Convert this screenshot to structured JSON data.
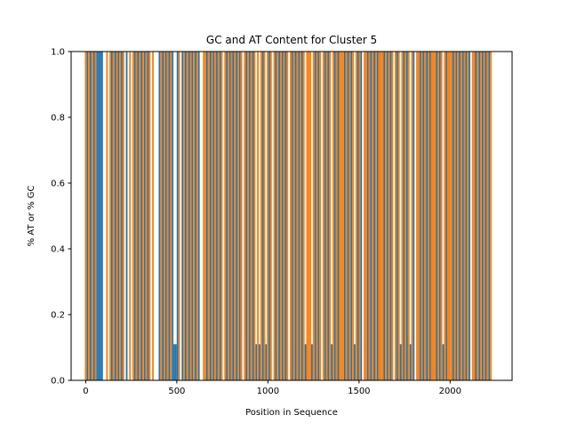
{
  "chart_data": {
    "type": "bar",
    "title": "GC and AT Content for Cluster 5",
    "xlabel": "Position in Sequence",
    "ylabel": "% AT or % GC",
    "xlim": [
      -80,
      2340
    ],
    "ylim": [
      0,
      1.0
    ],
    "xticks": [
      "0",
      "500",
      "1000",
      "1500",
      "2000"
    ],
    "yticks": [
      "0.0",
      "0.2",
      "0.4",
      "0.6",
      "0.8",
      "1.0"
    ],
    "grid": false,
    "legend": "none",
    "colors": {
      "at": "#1f77b4",
      "gc": "#ff7f0e"
    },
    "bar_width": 9,
    "series": [
      {
        "key": "blue",
        "color": "#1f77b4",
        "values": [
          [
            9,
            1
          ],
          [
            27,
            1
          ],
          [
            45,
            1
          ],
          [
            63,
            1
          ],
          [
            72,
            1
          ],
          [
            81,
            1
          ],
          [
            90,
            1
          ],
          [
            144,
            1
          ],
          [
            162,
            1
          ],
          [
            180,
            1
          ],
          [
            198,
            1
          ],
          [
            225,
            1
          ],
          [
            270,
            1
          ],
          [
            288,
            1
          ],
          [
            306,
            1
          ],
          [
            324,
            1
          ],
          [
            342,
            1
          ],
          [
            405,
            1
          ],
          [
            423,
            1
          ],
          [
            441,
            1
          ],
          [
            459,
            1
          ],
          [
            477,
            1
          ],
          [
            486,
            0.11
          ],
          [
            495,
            0.11
          ],
          [
            504,
            1
          ],
          [
            531,
            1
          ],
          [
            549,
            1
          ],
          [
            567,
            1
          ],
          [
            585,
            1
          ],
          [
            603,
            1
          ],
          [
            621,
            1
          ],
          [
            666,
            1
          ],
          [
            684,
            1
          ],
          [
            702,
            1
          ],
          [
            720,
            1
          ],
          [
            738,
            1
          ],
          [
            774,
            1
          ],
          [
            792,
            1
          ],
          [
            810,
            1
          ],
          [
            828,
            1
          ],
          [
            846,
            1
          ],
          [
            882,
            1
          ],
          [
            900,
            1
          ],
          [
            918,
            1
          ],
          [
            936,
            0.11
          ],
          [
            954,
            0.11
          ],
          [
            972,
            1
          ],
          [
            990,
            0.11
          ],
          [
            1008,
            1
          ],
          [
            1044,
            1
          ],
          [
            1062,
            1
          ],
          [
            1080,
            1
          ],
          [
            1098,
            1
          ],
          [
            1134,
            1
          ],
          [
            1152,
            1
          ],
          [
            1170,
            1
          ],
          [
            1188,
            1
          ],
          [
            1206,
            0.11
          ],
          [
            1242,
            0.11
          ],
          [
            1260,
            1
          ],
          [
            1278,
            1
          ],
          [
            1314,
            1
          ],
          [
            1332,
            1
          ],
          [
            1350,
            0.11
          ],
          [
            1368,
            1
          ],
          [
            1386,
            1
          ],
          [
            1422,
            1
          ],
          [
            1440,
            1
          ],
          [
            1458,
            1
          ],
          [
            1476,
            0.11
          ],
          [
            1494,
            1
          ],
          [
            1512,
            1
          ],
          [
            1548,
            1
          ],
          [
            1566,
            1
          ],
          [
            1584,
            1
          ],
          [
            1602,
            1
          ],
          [
            1638,
            1
          ],
          [
            1656,
            1
          ],
          [
            1674,
            1
          ],
          [
            1710,
            1
          ],
          [
            1728,
            0.11
          ],
          [
            1746,
            1
          ],
          [
            1764,
            1
          ],
          [
            1782,
            0.11
          ],
          [
            1800,
            1
          ],
          [
            1836,
            1
          ],
          [
            1854,
            1
          ],
          [
            1872,
            1
          ],
          [
            1890,
            1
          ],
          [
            1926,
            1
          ],
          [
            1944,
            1
          ],
          [
            1962,
            0.11
          ],
          [
            1980,
            1
          ],
          [
            2016,
            1
          ],
          [
            2034,
            1
          ],
          [
            2052,
            1
          ],
          [
            2070,
            1
          ],
          [
            2088,
            1
          ],
          [
            2106,
            1
          ],
          [
            2142,
            1
          ],
          [
            2160,
            1
          ],
          [
            2178,
            1
          ],
          [
            2196,
            1
          ],
          [
            2214,
            1
          ]
        ]
      },
      {
        "key": "orange",
        "color": "#ff7f0e",
        "values": [
          [
            0,
            1
          ],
          [
            18,
            1
          ],
          [
            36,
            1
          ],
          [
            54,
            1
          ],
          [
            117,
            1
          ],
          [
            135,
            1
          ],
          [
            153,
            1
          ],
          [
            171,
            1
          ],
          [
            189,
            1
          ],
          [
            207,
            1
          ],
          [
            243,
            1
          ],
          [
            261,
            1
          ],
          [
            279,
            1
          ],
          [
            297,
            1
          ],
          [
            315,
            1
          ],
          [
            333,
            1
          ],
          [
            351,
            1
          ],
          [
            369,
            1
          ],
          [
            414,
            1
          ],
          [
            432,
            1
          ],
          [
            450,
            1
          ],
          [
            468,
            1
          ],
          [
            513,
            1
          ],
          [
            540,
            1
          ],
          [
            558,
            1
          ],
          [
            576,
            1
          ],
          [
            594,
            1
          ],
          [
            612,
            1
          ],
          [
            648,
            1
          ],
          [
            657,
            1
          ],
          [
            675,
            1
          ],
          [
            693,
            1
          ],
          [
            711,
            1
          ],
          [
            729,
            1
          ],
          [
            747,
            1
          ],
          [
            765,
            1
          ],
          [
            783,
            1
          ],
          [
            801,
            1
          ],
          [
            819,
            1
          ],
          [
            837,
            1
          ],
          [
            855,
            1
          ],
          [
            873,
            1
          ],
          [
            891,
            1
          ],
          [
            909,
            1
          ],
          [
            927,
            1
          ],
          [
            945,
            1
          ],
          [
            963,
            1
          ],
          [
            981,
            1
          ],
          [
            999,
            1
          ],
          [
            1017,
            1
          ],
          [
            1035,
            1
          ],
          [
            1053,
            1
          ],
          [
            1071,
            1
          ],
          [
            1089,
            1
          ],
          [
            1107,
            1
          ],
          [
            1125,
            1
          ],
          [
            1143,
            1
          ],
          [
            1161,
            1
          ],
          [
            1179,
            1
          ],
          [
            1197,
            1
          ],
          [
            1215,
            1
          ],
          [
            1224,
            1
          ],
          [
            1233,
            1
          ],
          [
            1251,
            1
          ],
          [
            1269,
            1
          ],
          [
            1287,
            1
          ],
          [
            1305,
            1
          ],
          [
            1323,
            1
          ],
          [
            1341,
            1
          ],
          [
            1359,
            1
          ],
          [
            1377,
            1
          ],
          [
            1395,
            1
          ],
          [
            1404,
            1
          ],
          [
            1413,
            1
          ],
          [
            1431,
            1
          ],
          [
            1449,
            1
          ],
          [
            1467,
            1
          ],
          [
            1485,
            1
          ],
          [
            1503,
            1
          ],
          [
            1530,
            1
          ],
          [
            1539,
            1
          ],
          [
            1557,
            1
          ],
          [
            1575,
            1
          ],
          [
            1593,
            1
          ],
          [
            1611,
            1
          ],
          [
            1620,
            1
          ],
          [
            1629,
            1
          ],
          [
            1647,
            1
          ],
          [
            1665,
            1
          ],
          [
            1683,
            1
          ],
          [
            1701,
            1
          ],
          [
            1719,
            1
          ],
          [
            1737,
            1
          ],
          [
            1755,
            1
          ],
          [
            1773,
            1
          ],
          [
            1791,
            1
          ],
          [
            1818,
            1
          ],
          [
            1827,
            1
          ],
          [
            1845,
            1
          ],
          [
            1863,
            1
          ],
          [
            1881,
            1
          ],
          [
            1899,
            1
          ],
          [
            1908,
            1
          ],
          [
            1917,
            1
          ],
          [
            1935,
            1
          ],
          [
            1953,
            1
          ],
          [
            1971,
            1
          ],
          [
            1989,
            1
          ],
          [
            1998,
            1
          ],
          [
            2007,
            1
          ],
          [
            2025,
            1
          ],
          [
            2043,
            1
          ],
          [
            2061,
            1
          ],
          [
            2079,
            1
          ],
          [
            2097,
            1
          ],
          [
            2124,
            1
          ],
          [
            2133,
            1
          ],
          [
            2151,
            1
          ],
          [
            2169,
            1
          ],
          [
            2187,
            1
          ],
          [
            2205,
            1
          ],
          [
            2223,
            1
          ]
        ]
      }
    ]
  }
}
